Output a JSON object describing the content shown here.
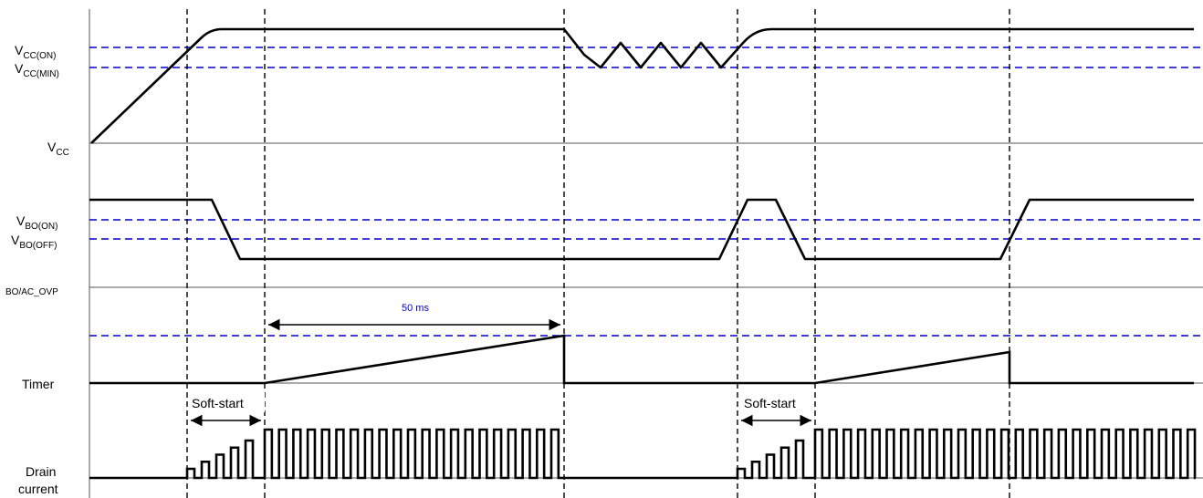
{
  "labels": {
    "vcc_on_base": "V",
    "vcc_on_sub": "CC(ON)",
    "vcc_min_base": "V",
    "vcc_min_sub": "CC(MIN)",
    "vcc_base": "V",
    "vcc_sub": "CC",
    "vbo_on_base": "V",
    "vbo_on_sub": "BO(ON)",
    "vbo_off_base": "V",
    "vbo_off_sub": "BO(OFF)",
    "bo_ac_ovp": "BO/AC_OVP",
    "timer": "Timer",
    "drain_line1": "Drain",
    "drain_line2": "current"
  },
  "annotations": {
    "timer_interval": "50 ms",
    "soft_start_1": "Soft-start",
    "soft_start_2": "Soft-start"
  },
  "colors": {
    "threshold": "#0000cc",
    "signal": "#000000",
    "annotation_text": "#0000cc",
    "axis": "#555555"
  }
}
